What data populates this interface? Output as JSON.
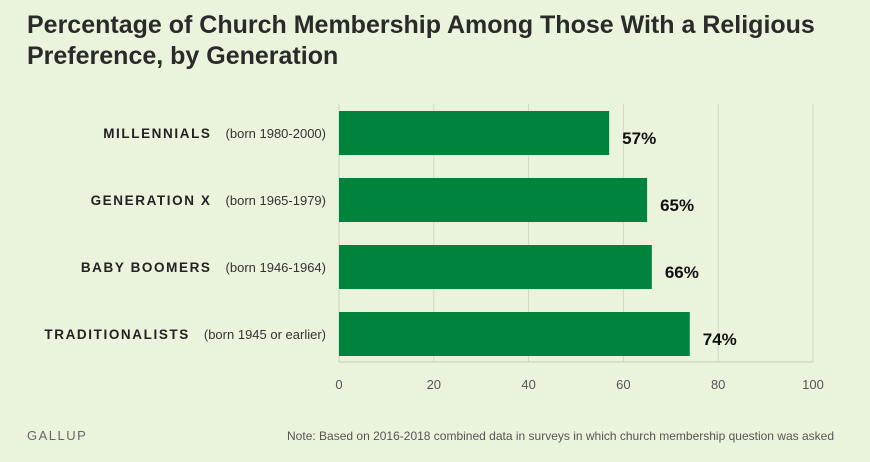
{
  "title": "Percentage of Church Membership Among Those With a Religious Preference, by Generation",
  "brand": "GALLUP",
  "note": "Note: Based on 2016-2018 combined data in surveys in which church membership question was asked",
  "colors": {
    "bar": "#00843d",
    "grid": "#cfd8c5",
    "background": "#eaf4dd"
  },
  "chart_data": {
    "type": "bar",
    "orientation": "horizontal",
    "title": "Percentage of Church Membership Among Those With a Religious Preference, by Generation",
    "categories": [
      "MILLENNIALS",
      "GENERATION X",
      "BABY BOOMERS",
      "TRADITIONALISTS"
    ],
    "category_subtitles": [
      "(born 1980-2000)",
      "(born 1965-1979)",
      "(born 1946-1964)",
      "(born 1945 or earlier)"
    ],
    "values": [
      57,
      65,
      66,
      74
    ],
    "value_labels": [
      "57%",
      "65%",
      "66%",
      "74%"
    ],
    "xlim": [
      0,
      100
    ],
    "xticks": [
      0,
      20,
      40,
      60,
      80,
      100
    ],
    "xlabel": "",
    "ylabel": "",
    "grid": true
  }
}
